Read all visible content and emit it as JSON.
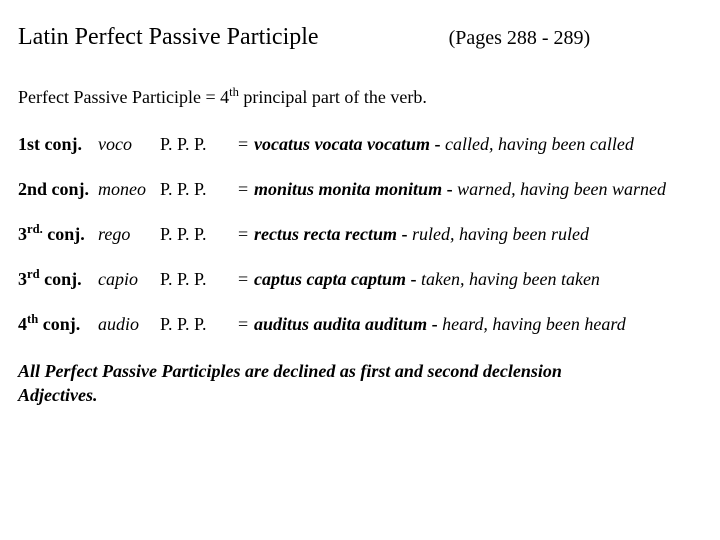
{
  "header": {
    "title": "Latin Perfect Passive Participle",
    "pages": "(Pages 288 - 289)"
  },
  "intro": {
    "prefix": "Perfect Passive Participle =  4",
    "sup": "th",
    "suffix": " principal part of the verb."
  },
  "rows": [
    {
      "conj_pre": "1st conj.",
      "conj_sup": "",
      "conj_post": "",
      "verb": "voco",
      "ppp": "P. P. P.",
      "eq": "=",
      "forms": "vocatus vocata vocatum",
      "dash": " - ",
      "gloss": "called, having been called"
    },
    {
      "conj_pre": "2nd conj.",
      "conj_sup": "",
      "conj_post": "",
      "verb": "moneo",
      "ppp": "P. P. P.",
      "eq": "=",
      "forms": "monitus monita monitum",
      "dash": " - ",
      "gloss": "warned, having been warned"
    },
    {
      "conj_pre": "3",
      "conj_sup": "rd.",
      "conj_post": " conj.",
      "verb": "rego",
      "ppp": "P. P. P.",
      "eq": "=",
      "forms": "rectus recta rectum",
      "dash": " - ",
      "gloss": "ruled, having been ruled"
    },
    {
      "conj_pre": "3",
      "conj_sup": "rd",
      "conj_post": " conj.",
      "verb": "capio",
      "ppp": "P. P. P.",
      "eq": "=",
      "forms": "captus capta captum",
      "dash": " - ",
      "gloss": "taken, having been taken"
    },
    {
      "conj_pre": "4",
      "conj_sup": "th",
      "conj_post": " conj.",
      "verb": "audio",
      "ppp": "P. P. P.",
      "eq": "=",
      "forms": "auditus audita auditum",
      "dash": " - ",
      "gloss": "heard, having been heard"
    }
  ],
  "footer": {
    "line1": "All Perfect Passive Participles are declined as first and second declension",
    "line2": "Adjectives."
  }
}
